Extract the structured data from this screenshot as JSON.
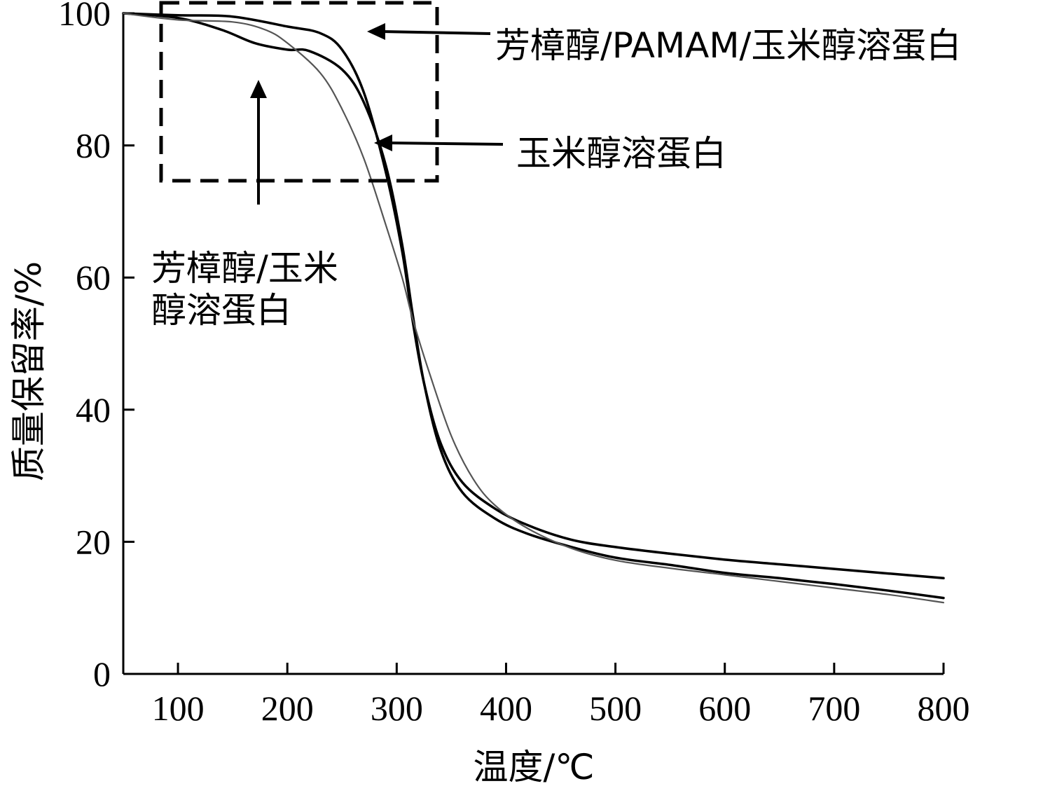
{
  "chart_data": {
    "type": "line",
    "xlabel": "温度/℃",
    "ylabel": "质量保留率/%",
    "xlim": [
      50,
      800
    ],
    "ylim": [
      0,
      100
    ],
    "xticks": [
      100,
      200,
      300,
      400,
      500,
      600,
      700,
      800
    ],
    "yticks": [
      0,
      20,
      40,
      60,
      80,
      100
    ],
    "xtick_labels": [
      "100",
      "200",
      "300",
      "400",
      "500",
      "600",
      "700",
      "800"
    ],
    "ytick_labels": [
      "0",
      "20",
      "40",
      "60",
      "80",
      "100"
    ],
    "grid": false,
    "series": [
      {
        "name": "芳樟醇/PAMAM/玉米醇溶蛋白",
        "color": "#000000",
        "x": [
          50,
          100,
          150,
          200,
          230,
          250,
          270,
          290,
          305,
          315,
          325,
          340,
          360,
          390,
          420,
          460,
          500,
          550,
          600,
          650,
          700,
          750,
          800
        ],
        "y": [
          100,
          99.7,
          99.5,
          98.0,
          97.0,
          94.5,
          88.0,
          76.0,
          64.0,
          53.0,
          44.0,
          35.0,
          29.0,
          25.0,
          22.5,
          20.3,
          19.2,
          18.2,
          17.3,
          16.6,
          15.9,
          15.2,
          14.5
        ]
      },
      {
        "name": "玉米醇溶蛋白",
        "color": "#000000",
        "x": [
          50,
          100,
          140,
          170,
          200,
          220,
          250,
          270,
          290,
          305,
          315,
          325,
          340,
          360,
          390,
          420,
          460,
          500,
          550,
          600,
          650,
          700,
          750,
          800
        ],
        "y": [
          100,
          99.3,
          97.5,
          95.5,
          94.5,
          94.3,
          91.5,
          86.5,
          77.0,
          65.0,
          54.0,
          44.0,
          34.0,
          27.5,
          23.5,
          21.2,
          19.2,
          17.6,
          16.5,
          15.3,
          14.5,
          13.6,
          12.6,
          11.5
        ]
      },
      {
        "name": "芳樟醇/玉米醇溶蛋白",
        "color": "#555555",
        "x": [
          50,
          100,
          150,
          180,
          200,
          230,
          250,
          270,
          290,
          305,
          315,
          330,
          350,
          370,
          390,
          420,
          460,
          500,
          550,
          600,
          650,
          700,
          750,
          800
        ],
        "y": [
          100,
          99.0,
          98.7,
          97.5,
          95.5,
          91.0,
          85.5,
          78.0,
          68.0,
          60.0,
          53.5,
          45.5,
          36.0,
          29.5,
          25.5,
          22.0,
          19.0,
          17.2,
          16.0,
          15.0,
          14.0,
          13.0,
          12.0,
          10.8
        ]
      }
    ],
    "annotations": {
      "label_pamam": "芳樟醇/PAMAM/玉米醇溶蛋白",
      "label_zein": "玉米醇溶蛋白",
      "label_linalool_zein_line1": "芳樟醇/玉米",
      "label_linalool_zein_line2": "醇溶蛋白"
    }
  }
}
